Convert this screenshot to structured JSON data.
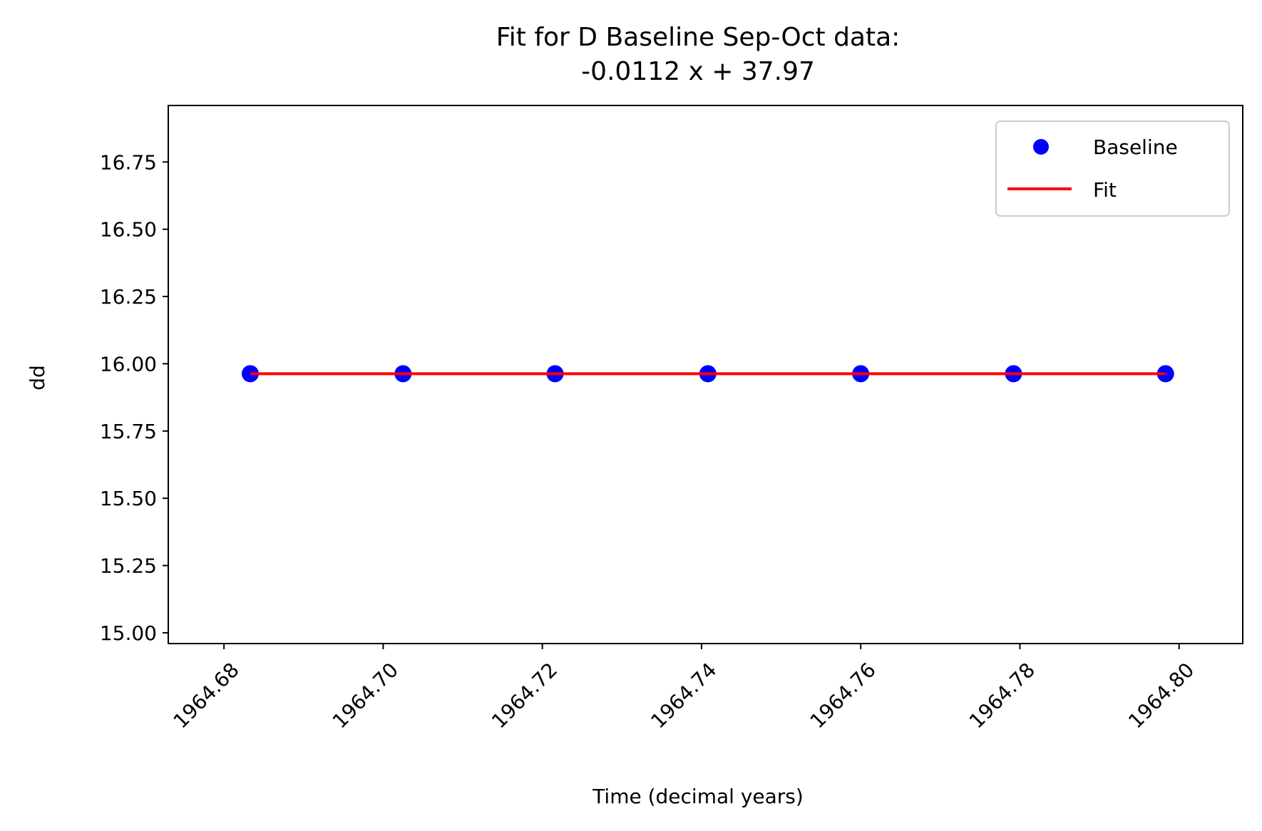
{
  "chart_data": {
    "type": "scatter",
    "title_line1": "Fit for D Baseline Sep-Oct data:",
    "title_line2": "-0.0112 x + 37.97",
    "xlabel": "Time (decimal years)",
    "ylabel": "dd",
    "xlim": [
      1964.673,
      1964.808
    ],
    "ylim": [
      14.96,
      16.96
    ],
    "xticks": [
      1964.68,
      1964.7,
      1964.72,
      1964.74,
      1964.76,
      1964.78,
      1964.8
    ],
    "xtick_labels": [
      "1964.68",
      "1964.70",
      "1964.72",
      "1964.74",
      "1964.76",
      "1964.78",
      "1964.80"
    ],
    "yticks": [
      15.0,
      15.25,
      15.5,
      15.75,
      16.0,
      16.25,
      16.5,
      16.75
    ],
    "ytick_labels": [
      "15.00",
      "15.25",
      "15.50",
      "15.75",
      "16.00",
      "16.25",
      "16.50",
      "16.75"
    ],
    "grid": false,
    "legend_position": "top-right",
    "series": [
      {
        "name": "Baseline",
        "kind": "scatter",
        "color": "#0000ff",
        "x": [
          1964.6833,
          1964.7025,
          1964.7216,
          1964.7408,
          1964.76,
          1964.7792,
          1964.7983
        ],
        "y": [
          15.963,
          15.963,
          15.963,
          15.963,
          15.963,
          15.963,
          15.963
        ]
      },
      {
        "name": "Fit",
        "kind": "line",
        "color": "#ff0000",
        "x": [
          1964.6833,
          1964.7983
        ],
        "y": [
          15.963,
          15.963
        ]
      }
    ]
  }
}
